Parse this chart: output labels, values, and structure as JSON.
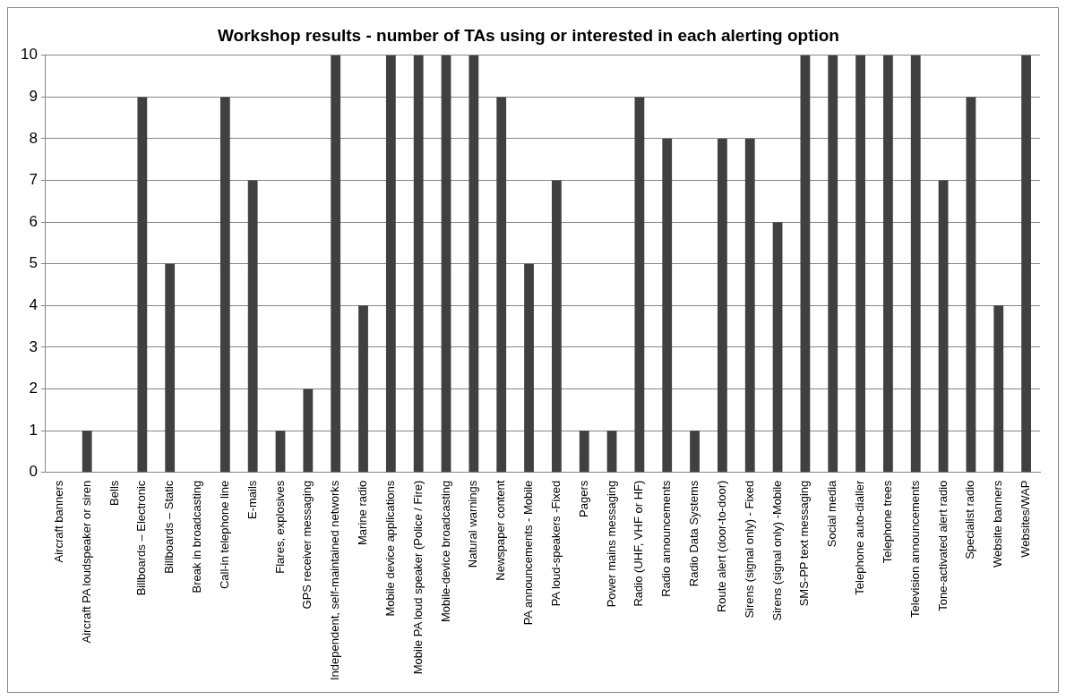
{
  "chart_data": {
    "type": "bar",
    "title": "Workshop results - number of TAs using or interested in each alerting option",
    "categories": [
      "Aircraft banners",
      "Aircraft PA loudspeaker or siren",
      "Bells",
      "Billboards – Electronic",
      "Billboards – Static",
      "Break in broadcasting",
      "Call-in telephone line",
      "E-mails",
      "Flares, explosives",
      "GPS receiver messaging",
      "Independent, self-maintained networks",
      "Marine radio",
      "Mobile device applications",
      "Mobile PA loud speaker (Police / Fire)",
      "Mobile-device broadcasting",
      "Natural warnings",
      "Newspaper content",
      "PA announcements - Mobile",
      "PA loud-speakers -Fixed",
      "Pagers",
      "Power mains messaging",
      "Radio (UHF, VHF or HF)",
      "Radio announcements",
      "Radio Data Systems",
      "Route alert (door-to-door)",
      "Sirens (signal only) - Fixed",
      "Sirens (signal only) -Mobile",
      "SMS-PP text messaging",
      "Social media",
      "Telephone auto-dialler",
      "Telephone trees",
      "Television announcements",
      "Tone-activated alert radio",
      "Specialist radio",
      "Website banners",
      "Websites/WAP"
    ],
    "values": [
      0,
      1,
      0,
      9,
      5,
      0,
      9,
      7,
      1,
      2,
      10,
      4,
      10,
      10,
      10,
      10,
      9,
      5,
      7,
      1,
      1,
      9,
      8,
      1,
      8,
      8,
      6,
      10,
      10,
      10,
      10,
      10,
      7,
      9,
      4,
      10
    ],
    "color": "#404040",
    "ylim": [
      0,
      10
    ],
    "yticks": [
      0,
      1,
      2,
      3,
      4,
      5,
      6,
      7,
      8,
      9,
      10
    ],
    "grid": "y",
    "legend": false
  }
}
